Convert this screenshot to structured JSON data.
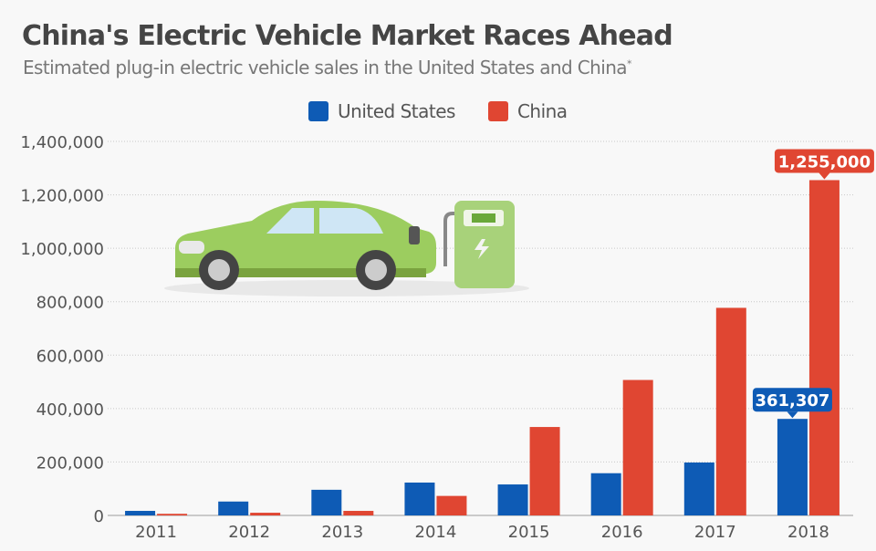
{
  "colors": {
    "us": "#0e5bb5",
    "china": "#e04632"
  },
  "chart_data": {
    "type": "bar",
    "title": "China's Electric Vehicle Market Races Ahead",
    "subtitle": "Estimated plug-in electric vehicle sales in the United States and China",
    "subtitle_mark": "*",
    "categories": [
      "2011",
      "2012",
      "2013",
      "2014",
      "2015",
      "2016",
      "2017",
      "2018"
    ],
    "series": [
      {
        "name": "United States",
        "values": [
          17000,
          52000,
          96000,
          123000,
          116000,
          158000,
          198000,
          361307
        ]
      },
      {
        "name": "China",
        "values": [
          6000,
          10000,
          17000,
          73000,
          331000,
          507000,
          777000,
          1255000
        ]
      }
    ],
    "ylim": [
      0,
      1400000
    ],
    "yticks": [
      "0",
      "200,000",
      "400,000",
      "600,000",
      "800,000",
      "1,000,000",
      "1,200,000",
      "1,400,000"
    ],
    "grid": true,
    "legend": "top-center",
    "data_labels": {
      "us_2018": "361,307",
      "china_2018": "1,255,000"
    }
  }
}
